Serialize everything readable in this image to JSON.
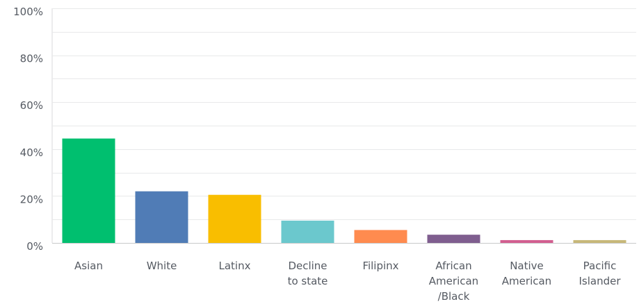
{
  "chart_data": {
    "type": "bar",
    "title": "",
    "xlabel": "",
    "ylabel": "",
    "ylim": [
      0,
      100
    ],
    "y_ticks": [
      "0%",
      "20%",
      "40%",
      "60%",
      "80%",
      "100%"
    ],
    "y_tick_values": [
      0,
      20,
      40,
      60,
      80,
      100
    ],
    "grid": true,
    "categories": [
      [
        "Asian"
      ],
      [
        "White"
      ],
      [
        "Latinx"
      ],
      [
        "Decline",
        "to state"
      ],
      [
        "Filipinx"
      ],
      [
        "African",
        "American",
        "/Black"
      ],
      [
        "Native",
        "American"
      ],
      [
        "Pacific",
        "Islander"
      ]
    ],
    "values": [
      44.5,
      22,
      20.5,
      9.5,
      5.5,
      3.5,
      1.2,
      1.2
    ],
    "colors": [
      "#00bf6f",
      "#507cb6",
      "#f9be00",
      "#6bc8cd",
      "#ff8b4f",
      "#7f5e8f",
      "#d25f90",
      "#c7b879"
    ]
  }
}
